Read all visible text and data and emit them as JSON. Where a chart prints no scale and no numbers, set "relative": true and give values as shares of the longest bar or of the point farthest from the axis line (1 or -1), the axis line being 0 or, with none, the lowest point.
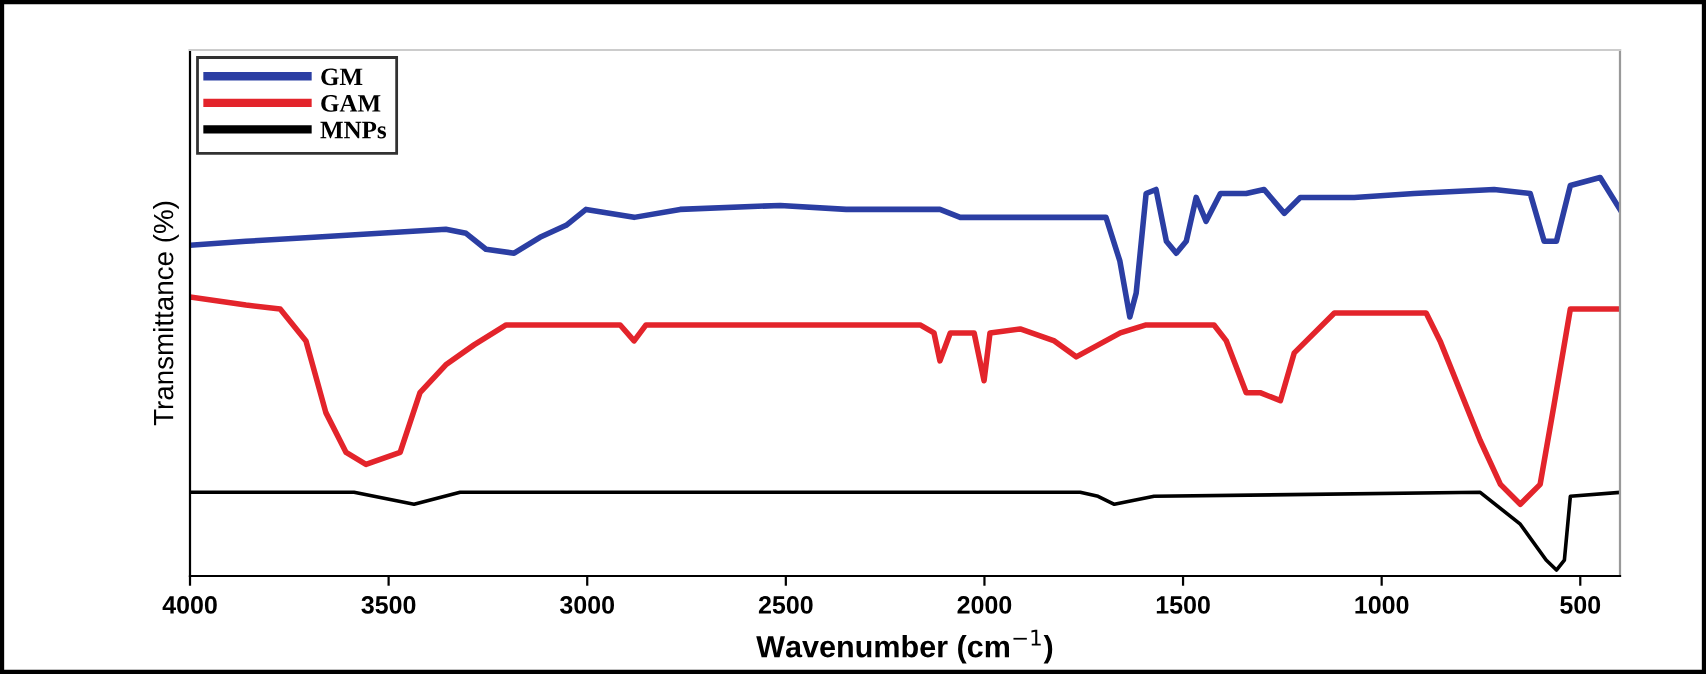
{
  "chart_data": {
    "type": "line",
    "relative": true,
    "xlabel": "Wavenumber (cm$^{−1}$)",
    "ylabel": "Transmittance (%)",
    "xlim": [
      4000,
      400
    ],
    "xticks": [
      4000,
      3500,
      3000,
      2500,
      2000,
      1500,
      1000,
      500
    ],
    "legend": "top left",
    "grid": false,
    "marker": "none",
    "line_style": "solid",
    "series": [
      {
        "name": "GM",
        "color": "#2b3ea3",
        "x": [
          4000,
          3859,
          3688,
          3522,
          3356,
          3305,
          3255,
          3184,
          3119,
          3053,
          3003,
          2882,
          2766,
          2514,
          2348,
          2112,
          2061,
          1794,
          1694,
          1659,
          1634,
          1618,
          1593,
          1568,
          1542,
          1517,
          1492,
          1467,
          1442,
          1406,
          1341,
          1296,
          1245,
          1205,
          1069,
          918,
          717,
          626,
          591,
          560,
          525,
          450,
          400
        ],
        "values": [
          0.83,
          0.84,
          0.85,
          0.86,
          0.87,
          0.86,
          0.82,
          0.81,
          0.85,
          0.88,
          0.92,
          0.9,
          0.92,
          0.93,
          0.92,
          0.92,
          0.9,
          0.9,
          0.9,
          0.79,
          0.65,
          0.71,
          0.96,
          0.97,
          0.84,
          0.81,
          0.84,
          0.95,
          0.89,
          0.96,
          0.96,
          0.97,
          0.91,
          0.95,
          0.95,
          0.96,
          0.97,
          0.96,
          0.84,
          0.84,
          0.98,
          1.0,
          0.92
        ]
      },
      {
        "name": "GAM",
        "color": "#e3242b",
        "x": [
          4000,
          3859,
          3773,
          3708,
          3658,
          3607,
          3557,
          3471,
          3421,
          3356,
          3285,
          3204,
          3018,
          2917,
          2882,
          2852,
          2514,
          2162,
          2127,
          2112,
          2086,
          2026,
          2001,
          1986,
          1910,
          1824,
          1769,
          1658,
          1593,
          1422,
          1391,
          1341,
          1306,
          1255,
          1220,
          1119,
          888,
          853,
          752,
          701,
          651,
          601,
          566,
          525,
          400
        ],
        "values": [
          0.7,
          0.68,
          0.67,
          0.59,
          0.41,
          0.31,
          0.28,
          0.31,
          0.46,
          0.53,
          0.58,
          0.63,
          0.63,
          0.63,
          0.59,
          0.63,
          0.63,
          0.63,
          0.61,
          0.54,
          0.61,
          0.61,
          0.49,
          0.61,
          0.62,
          0.59,
          0.55,
          0.61,
          0.63,
          0.63,
          0.59,
          0.46,
          0.46,
          0.44,
          0.56,
          0.66,
          0.66,
          0.59,
          0.34,
          0.23,
          0.18,
          0.23,
          0.43,
          0.67,
          0.67
        ]
      },
      {
        "name": "MNPs",
        "color": "#000000",
        "x": [
          4000,
          3587,
          3436,
          3320,
          2112,
          1759,
          1714,
          1673,
          1573,
          752,
          651,
          586,
          560,
          540,
          525,
          400
        ],
        "values": [
          0.21,
          0.21,
          0.18,
          0.21,
          0.21,
          0.21,
          0.2,
          0.18,
          0.2,
          0.21,
          0.13,
          0.04,
          0.015,
          0.04,
          0.2,
          0.21
        ]
      }
    ]
  }
}
